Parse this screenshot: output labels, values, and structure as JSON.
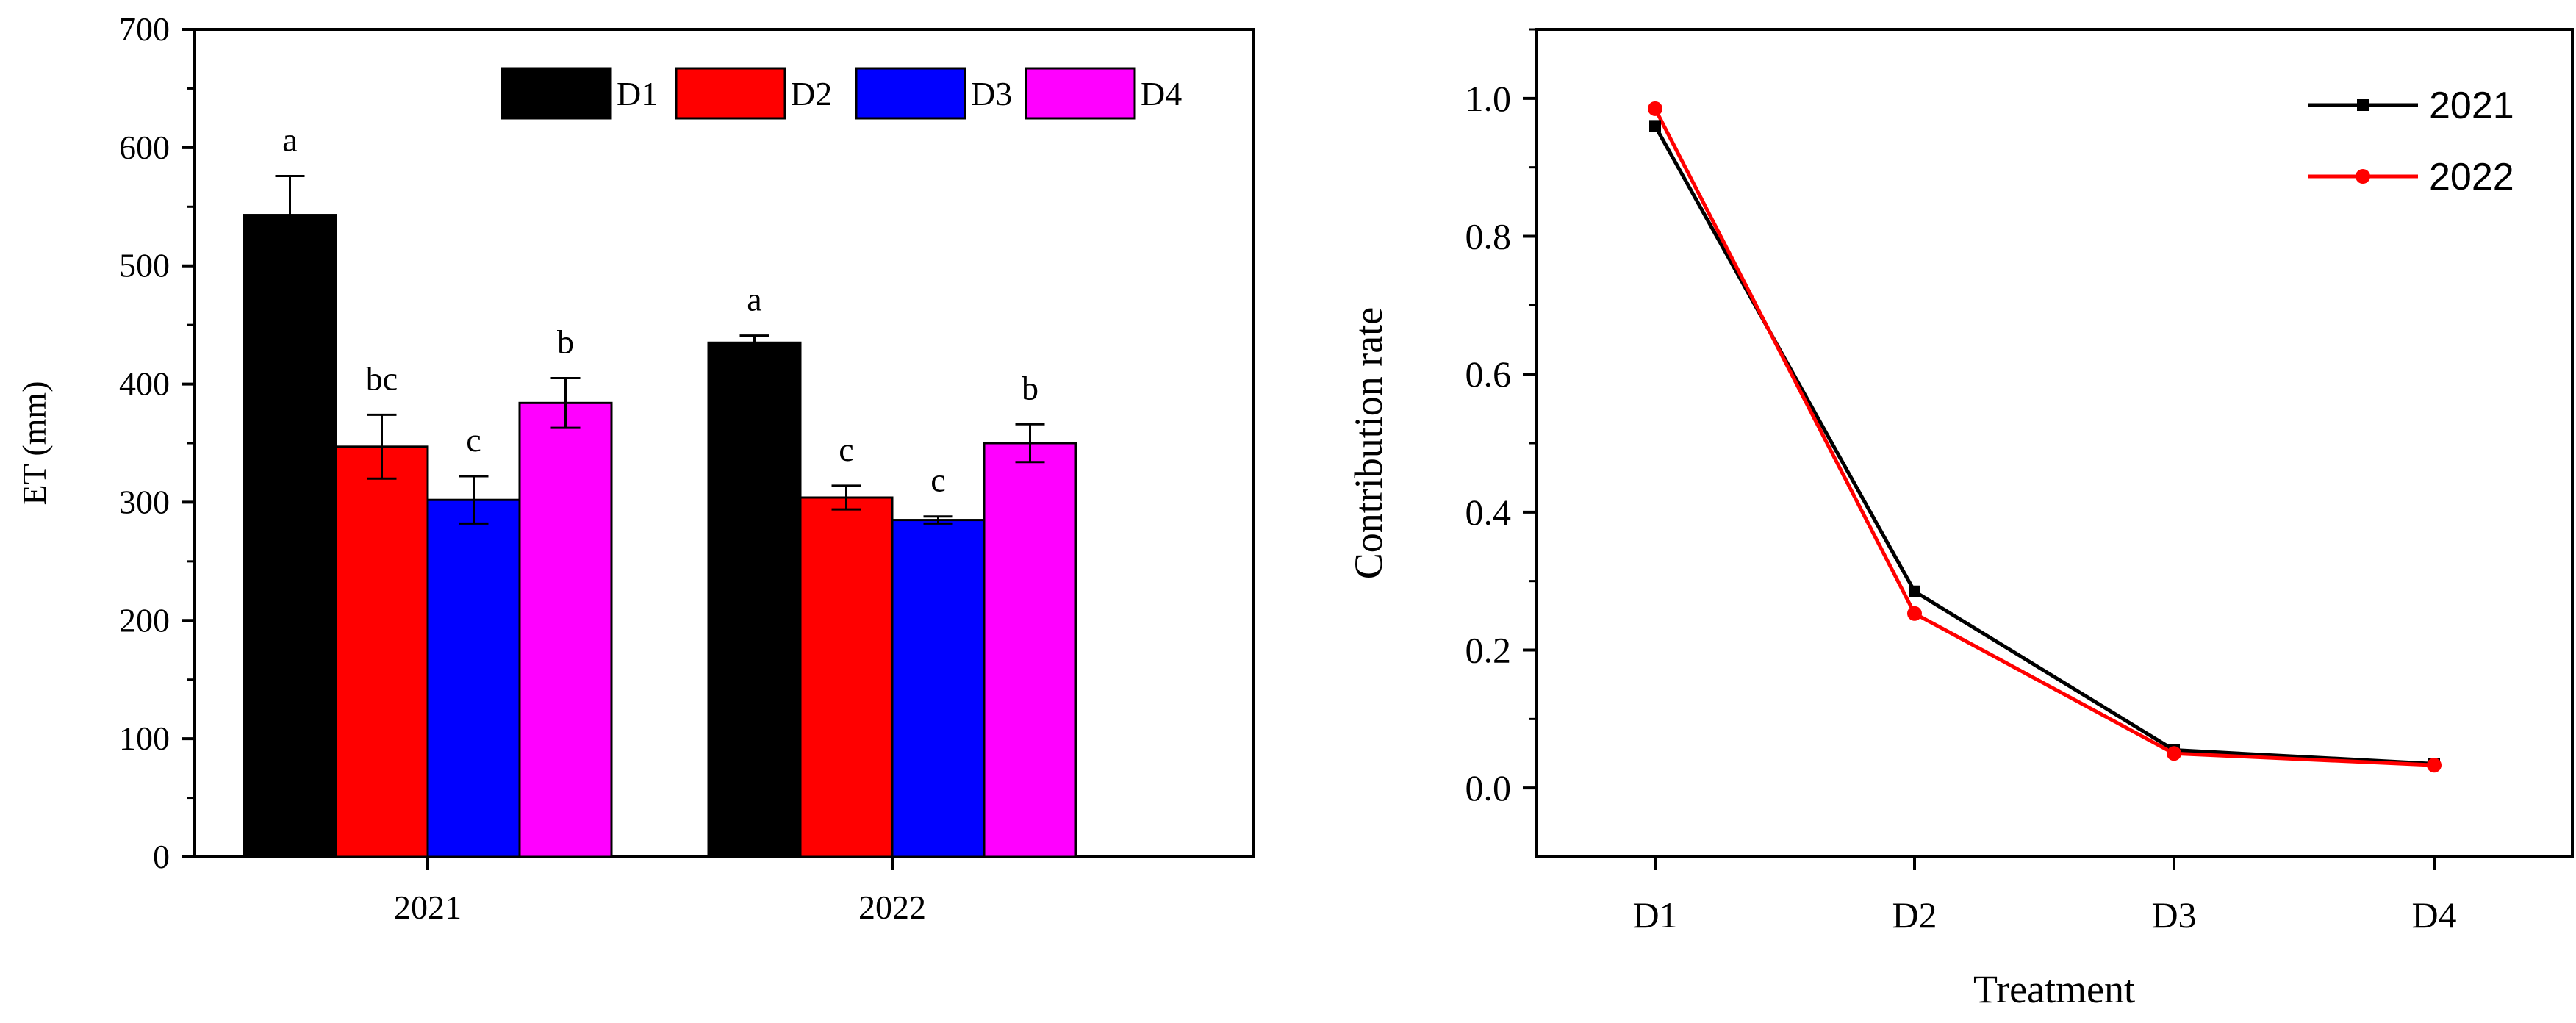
{
  "chart_data": [
    {
      "type": "bar",
      "title": "",
      "xlabel": "",
      "ylabel": "ET (mm)",
      "ylim": [
        0,
        700
      ],
      "yticks": [
        0,
        100,
        200,
        300,
        400,
        500,
        600,
        700
      ],
      "categories": [
        "2021",
        "2022"
      ],
      "series": [
        {
          "name": "D1",
          "color": "#000000",
          "values": [
            543,
            435
          ],
          "errors": [
            33,
            6
          ],
          "letters": [
            "a",
            "a"
          ]
        },
        {
          "name": "D2",
          "color": "#ff0000",
          "values": [
            347,
            304
          ],
          "errors": [
            27,
            10
          ],
          "letters": [
            "bc",
            "c"
          ]
        },
        {
          "name": "D3",
          "color": "#0000ff",
          "values": [
            302,
            285
          ],
          "errors": [
            20,
            3
          ],
          "letters": [
            "c",
            "c"
          ]
        },
        {
          "name": "D4",
          "color": "#ff00ff",
          "values": [
            384,
            350
          ],
          "errors": [
            21,
            16
          ],
          "letters": [
            "b",
            "b"
          ]
        }
      ],
      "legend": "top-right"
    },
    {
      "type": "line",
      "title": "",
      "xlabel": "Treatment",
      "ylabel": "Contribution rate",
      "ylim": [
        -0.1,
        1.1
      ],
      "yticks": [
        "0.0",
        "0.2",
        "0.4",
        "0.6",
        "0.8",
        "1.0"
      ],
      "categories": [
        "D1",
        "D2",
        "D3",
        "D4"
      ],
      "series": [
        {
          "name": "2021",
          "color": "#000000",
          "marker": "square",
          "values": [
            0.96,
            0.285,
            0.055,
            0.035
          ]
        },
        {
          "name": "2022",
          "color": "#ff0000",
          "marker": "circle",
          "values": [
            0.985,
            0.253,
            0.05,
            0.033
          ]
        }
      ],
      "legend": "top-right"
    }
  ]
}
